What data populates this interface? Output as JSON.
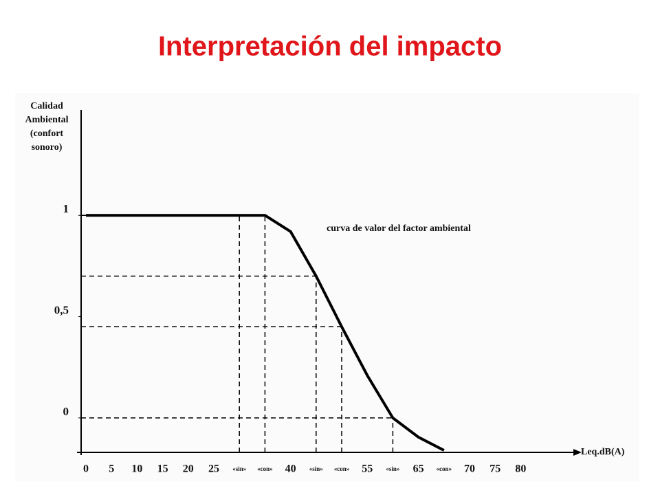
{
  "chart_data": {
    "type": "line",
    "title": "Interpretación del impacto",
    "y_label": [
      "Calidad",
      "Ambiental",
      "(confort",
      "sonoro)"
    ],
    "x_label": "Leq.dB(A)",
    "annotation": "curva de valor del factor ambiental",
    "categories": [
      "0",
      "5",
      "10",
      "15",
      "20",
      "25",
      "«sin»",
      "«con»",
      "40",
      "«sin»",
      "«con»",
      "55",
      "«sin»",
      "65",
      "«con»",
      "70",
      "75",
      "80"
    ],
    "series": [
      {
        "name": "curva de valor del factor ambiental",
        "color": "#000000",
        "values": [
          1,
          1,
          1,
          1,
          1,
          1,
          1,
          1,
          0.92,
          0.7,
          0.45,
          0.21,
          0,
          -0.095,
          -0.16,
          null,
          null,
          null
        ]
      }
    ],
    "guides": [
      6,
      7,
      9,
      10,
      12
    ],
    "ylim": [
      -0.16,
      1.52
    ],
    "yticks": [
      {
        "value": 1,
        "label": "1"
      },
      {
        "value": 0.5,
        "label": "0,5"
      },
      {
        "value": 0,
        "label": "0"
      }
    ]
  }
}
